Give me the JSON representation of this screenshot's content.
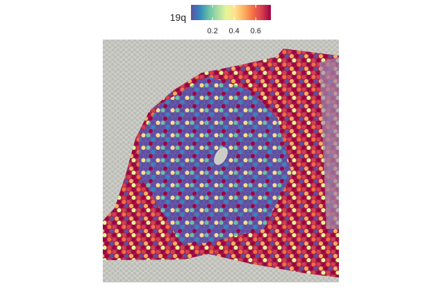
{
  "chart_data": {
    "type": "spatial",
    "legend_title": "19q",
    "clim": [
      0.0,
      0.74
    ],
    "ticks": [
      0.2,
      0.4,
      0.6
    ],
    "colormap": [
      "#5e4fa2",
      "#3288bd",
      "#66c2a5",
      "#abdda4",
      "#e6f598",
      "#fee08b",
      "#fdae61",
      "#f46d43",
      "#d53e4f",
      "#9e0142"
    ]
  }
}
